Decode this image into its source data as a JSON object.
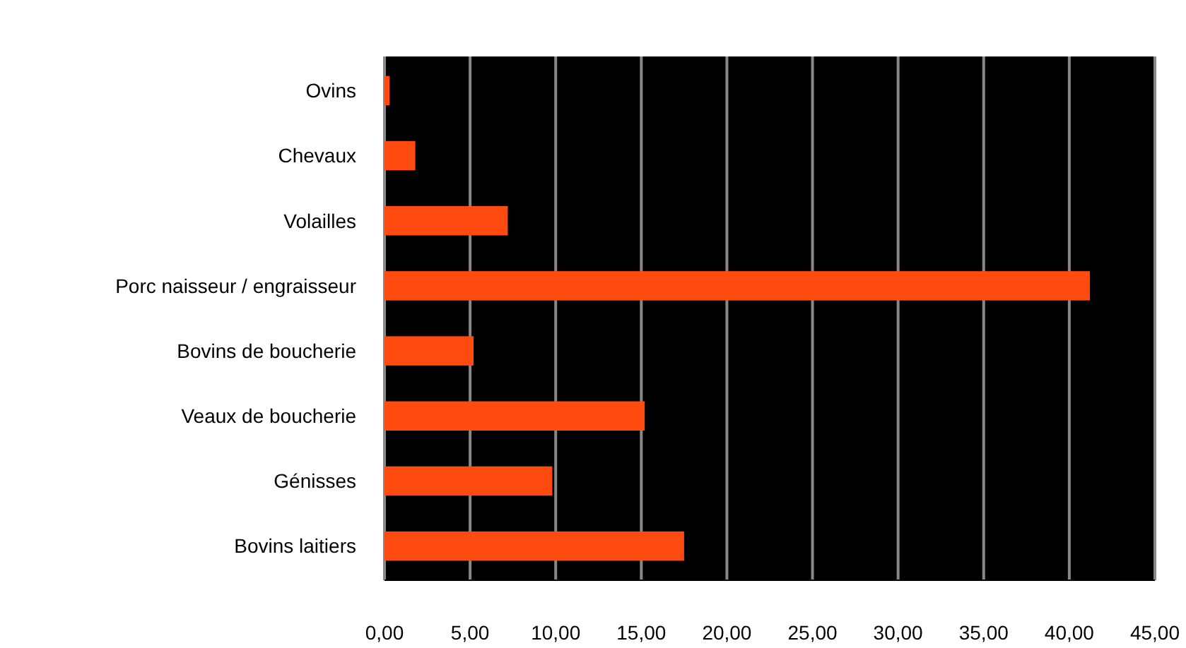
{
  "chart_data": {
    "type": "bar",
    "orientation": "horizontal",
    "categories": [
      "Ovins",
      "Chevaux",
      "Volailles",
      "Porc naisseur / engraisseur",
      "Bovins de boucherie",
      "Veaux de boucherie",
      "Génisses",
      "Bovins laitiers"
    ],
    "values": [
      0.3,
      1.8,
      7.2,
      41.2,
      5.2,
      15.2,
      9.8,
      17.5
    ],
    "color": "#ff4a10",
    "xlim": [
      0,
      45
    ],
    "xticks": [
      {
        "value": 0,
        "label": "0,00"
      },
      {
        "value": 5,
        "label": "5,00"
      },
      {
        "value": 10,
        "label": "10,00"
      },
      {
        "value": 15,
        "label": "15,00"
      },
      {
        "value": 20,
        "label": "20,00"
      },
      {
        "value": 25,
        "label": "25,00"
      },
      {
        "value": 30,
        "label": "30,00"
      },
      {
        "value": 35,
        "label": "35,00"
      },
      {
        "value": 40,
        "label": "40,00"
      },
      {
        "value": 45,
        "label": "45,00"
      }
    ],
    "grid": "x"
  }
}
